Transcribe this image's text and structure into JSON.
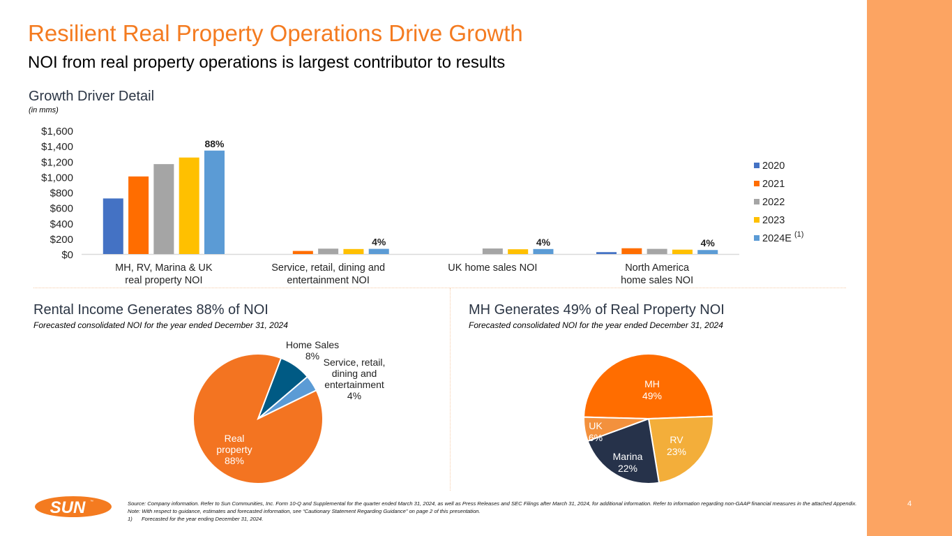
{
  "page": {
    "title": "Resilient Real Property Operations Drive Growth",
    "subtitle": "NOI from real property operations is largest contributor to results",
    "page_number": "4",
    "colors": {
      "accent": "#F47B20",
      "sidebar": "#FCA462",
      "heading": "#2B3544"
    }
  },
  "growth_section": {
    "title": "Growth Driver Detail",
    "unit_note": "(in mms)"
  },
  "rental_section": {
    "title": "Rental Income Generates 88% of NOI",
    "subtitle": "Forecasted consolidated NOI for the year ended December 31, 2024"
  },
  "mh_section": {
    "title": "MH Generates 49% of Real Property NOI",
    "subtitle": "Forecasted consolidated NOI for the year ended December 31, 2024"
  },
  "logo": {
    "text": "SUN",
    "mark": "™"
  },
  "footnotes": {
    "source": "Source: Company information. Refer to Sun Communities, Inc. Form 10-Q and Supplemental for the quarter ended March 31, 2024, as well as Press Releases and SEC Filings after March 31, 2024, for additional information. Refer to information regarding non-GAAP financial measures in the attached Appendix.",
    "note": "Note:  With respect to guidance, estimates and forecasted information, see “Cautionary Statement Regarding Guidance” on page 2 of this presentation.",
    "items": [
      {
        "mark": "1)",
        "text": "Forecasted for the year ending December 31, 2024."
      }
    ]
  },
  "chart_data": [
    {
      "type": "bar",
      "title": "Growth Driver Detail",
      "subtitle": "(in mms)",
      "xlabel": "",
      "ylabel": "",
      "ylim": [
        0,
        1600
      ],
      "ytick_step": 200,
      "yticks": [
        "$0",
        "$200",
        "$400",
        "$600",
        "$800",
        "$1,000",
        "$1,200",
        "$1,400",
        "$1,600"
      ],
      "grid": false,
      "legend_position": "right",
      "categories": [
        [
          "MH, RV, Marina & UK",
          "real property NOI"
        ],
        [
          "Service, retail, dining and",
          "entertainment NOI"
        ],
        [
          "UK home sales NOI"
        ],
        [
          "North America",
          "home sales NOI"
        ]
      ],
      "series": [
        {
          "name": "2020",
          "color": "#4472C4",
          "values": [
            720,
            0,
            0,
            25
          ]
        },
        {
          "name": "2021",
          "color": "#FF6D00",
          "values": [
            1005,
            40,
            0,
            75
          ]
        },
        {
          "name": "2022",
          "color": "#A5A5A5",
          "values": [
            1165,
            70,
            72,
            67
          ]
        },
        {
          "name": "2023",
          "color": "#FFC000",
          "values": [
            1250,
            65,
            62,
            57
          ]
        },
        {
          "name": "2024E",
          "superscript": "(1)",
          "color": "#5B9BD5",
          "values": [
            1340,
            67,
            65,
            52
          ]
        }
      ],
      "annotations": [
        "88%",
        "4%",
        "4%",
        "4%"
      ]
    },
    {
      "type": "pie",
      "title": "Rental Income Generates 88% of NOI",
      "start_angle_deg": 20.8,
      "slices": [
        {
          "label": "Home Sales",
          "value": 8,
          "display": "8%",
          "color": "#005A84",
          "label_color": "#222222",
          "label_lines": [
            "Home Sales",
            "8%"
          ]
        },
        {
          "label": "Service, retail, dining and entertainment",
          "value": 4,
          "display": "4%",
          "color": "#5B9BD5",
          "label_color": "#222222",
          "label_lines": [
            "Service, retail,",
            "dining and",
            "entertainment",
            "4%"
          ]
        },
        {
          "label": "Real property",
          "value": 88,
          "display": "88%",
          "color": "#F37421",
          "label_color": "#FFFFFF",
          "label_lines": [
            "Real",
            "property",
            "88%"
          ]
        }
      ]
    },
    {
      "type": "pie",
      "title": "MH Generates 49% of Real Property NOI",
      "start_angle_deg": 271.5,
      "slices": [
        {
          "label": "MH",
          "value": 49,
          "display": "49%",
          "color": "#FF6D00",
          "label_color": "#FFFFFF",
          "label_lines": [
            "MH",
            "49%"
          ]
        },
        {
          "label": "RV",
          "value": 23,
          "display": "23%",
          "color": "#F3AE3A",
          "label_color": "#FFFFFF",
          "label_lines": [
            "RV",
            "23%"
          ]
        },
        {
          "label": "Marina",
          "value": 22,
          "display": "22%",
          "color": "#26324A",
          "label_color": "#FFFFFF",
          "label_lines": [
            "Marina",
            "22%"
          ]
        },
        {
          "label": "UK",
          "value": 6,
          "display": "6%",
          "color": "#F3913D",
          "label_color": "#FFFFFF",
          "label_lines": [
            "UK",
            "6%"
          ]
        }
      ]
    }
  ]
}
